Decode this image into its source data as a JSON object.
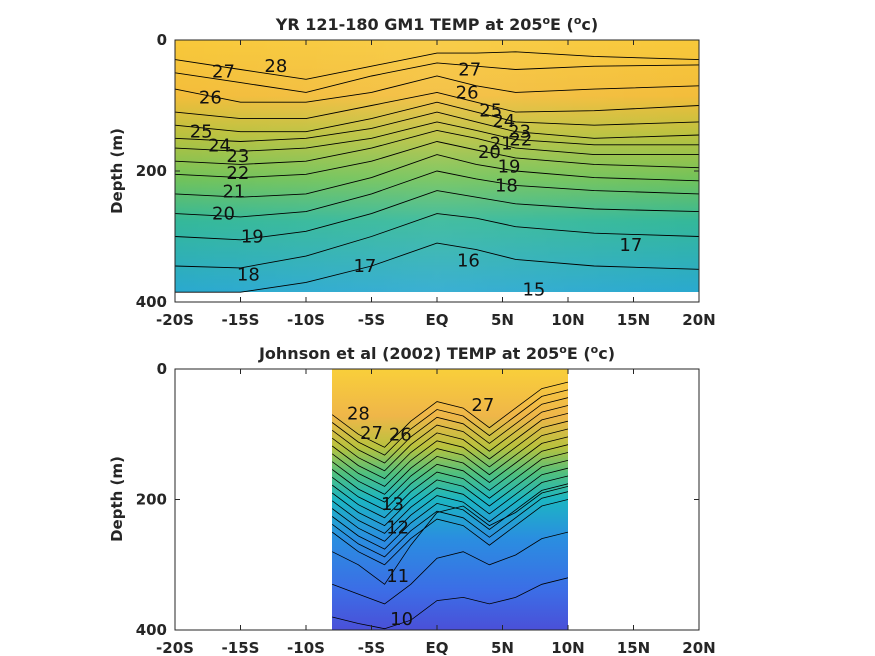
{
  "chart_data": [
    {
      "type": "contour",
      "title": "YR 121-180 GM1 TEMP at 205",
      "title_sup": "o",
      "title_unit_pre": "E (",
      "title_unit_sup": "o",
      "title_unit_post": "c)",
      "ylabel": "Depth (m)",
      "xlabel": "",
      "xlim": [
        -20,
        20
      ],
      "ylim": [
        0,
        400
      ],
      "x_ticks": [
        -20,
        -15,
        -10,
        -5,
        0,
        5,
        10,
        15,
        20
      ],
      "x_tick_labels": [
        "-20S",
        "-15S",
        "-10S",
        "-5S",
        "EQ",
        "5N",
        "10N",
        "15N",
        "20N"
      ],
      "y_ticks": [
        0,
        200,
        400
      ],
      "y_tick_labels": [
        "0",
        "200",
        "400"
      ],
      "data_x_range": [
        -20,
        20
      ],
      "data_depth_max": 385,
      "contour_labels": [
        {
          "text": "28",
          "x": -12.3,
          "y": 40
        },
        {
          "text": "27",
          "x": -16.3,
          "y": 48
        },
        {
          "text": "27",
          "x": 2.5,
          "y": 45
        },
        {
          "text": "26",
          "x": -17.3,
          "y": 88
        },
        {
          "text": "26",
          "x": 2.3,
          "y": 80
        },
        {
          "text": "25",
          "x": 4.1,
          "y": 108
        },
        {
          "text": "24",
          "x": 5.1,
          "y": 124
        },
        {
          "text": "23",
          "x": 6.3,
          "y": 140
        },
        {
          "text": "22",
          "x": 6.4,
          "y": 152
        },
        {
          "text": "21",
          "x": 4.9,
          "y": 158
        },
        {
          "text": "20",
          "x": 4.0,
          "y": 171
        },
        {
          "text": "19",
          "x": 5.5,
          "y": 193
        },
        {
          "text": "18",
          "x": 5.3,
          "y": 222
        },
        {
          "text": "25",
          "x": -18.0,
          "y": 140
        },
        {
          "text": "24",
          "x": -16.6,
          "y": 161
        },
        {
          "text": "23",
          "x": -15.2,
          "y": 177
        },
        {
          "text": "22",
          "x": -15.2,
          "y": 203
        },
        {
          "text": "21",
          "x": -15.5,
          "y": 231
        },
        {
          "text": "20",
          "x": -16.3,
          "y": 265
        },
        {
          "text": "19",
          "x": -14.1,
          "y": 300
        },
        {
          "text": "18",
          "x": -14.4,
          "y": 358
        },
        {
          "text": "17",
          "x": -5.5,
          "y": 345
        },
        {
          "text": "16",
          "x": 2.4,
          "y": 337
        },
        {
          "text": "17",
          "x": 14.8,
          "y": 313
        },
        {
          "text": "15",
          "x": 7.4,
          "y": 381
        }
      ],
      "colorscale": [
        "#f9cf3a",
        "#f6c23a",
        "#e3c23a",
        "#b3c23e",
        "#86c34e",
        "#5cc06c",
        "#34b89a",
        "#1fb1c5",
        "#2fa0d8"
      ]
    },
    {
      "type": "contour",
      "title": "Johnson et al (2002) TEMP at 205",
      "title_sup": "o",
      "title_unit_pre": "E (",
      "title_unit_sup": "o",
      "title_unit_post": "c)",
      "ylabel": "Depth (m)",
      "xlabel": "",
      "xlim": [
        -20,
        20
      ],
      "ylim": [
        0,
        400
      ],
      "x_ticks": [
        -20,
        -15,
        -10,
        -5,
        0,
        5,
        10,
        15,
        20
      ],
      "x_tick_labels": [
        "-20S",
        "-15S",
        "-10S",
        "-5S",
        "EQ",
        "5N",
        "10N",
        "15N",
        "20N"
      ],
      "y_ticks": [
        0,
        200,
        400
      ],
      "y_tick_labels": [
        "0",
        "200",
        "400"
      ],
      "data_x_range": [
        -8,
        10
      ],
      "data_depth_max": 400,
      "contour_labels": [
        {
          "text": "28",
          "x": -6.0,
          "y": 68
        },
        {
          "text": "27",
          "x": -5.0,
          "y": 98
        },
        {
          "text": "26",
          "x": -2.8,
          "y": 100
        },
        {
          "text": "27",
          "x": 3.5,
          "y": 55
        },
        {
          "text": "13",
          "x": -3.4,
          "y": 207
        },
        {
          "text": "12",
          "x": -3.0,
          "y": 243
        },
        {
          "text": "11",
          "x": -3.0,
          "y": 317
        },
        {
          "text": "10",
          "x": -2.7,
          "y": 383
        }
      ],
      "colorscale": [
        "#f9cf3a",
        "#f0b845",
        "#c2c03d",
        "#55c07a",
        "#1fb6c0",
        "#2a8ee0",
        "#3f6ae6",
        "#4a4fd8"
      ]
    }
  ]
}
